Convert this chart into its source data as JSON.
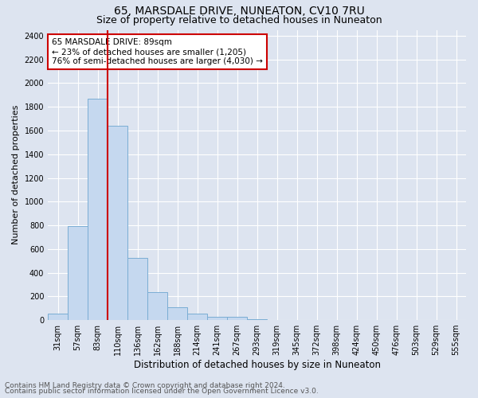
{
  "title1": "65, MARSDALE DRIVE, NUNEATON, CV10 7RU",
  "title2": "Size of property relative to detached houses in Nuneaton",
  "xlabel": "Distribution of detached houses by size in Nuneaton",
  "ylabel": "Number of detached properties",
  "categories": [
    "31sqm",
    "57sqm",
    "83sqm",
    "110sqm",
    "136sqm",
    "162sqm",
    "188sqm",
    "214sqm",
    "241sqm",
    "267sqm",
    "293sqm",
    "319sqm",
    "345sqm",
    "372sqm",
    "398sqm",
    "424sqm",
    "450sqm",
    "476sqm",
    "503sqm",
    "529sqm",
    "555sqm"
  ],
  "values": [
    55,
    795,
    1870,
    1640,
    525,
    235,
    110,
    55,
    30,
    25,
    10,
    0,
    0,
    0,
    0,
    0,
    0,
    0,
    0,
    0,
    0
  ],
  "bar_color": "#c5d8ef",
  "bar_edge_color": "#7aadd4",
  "annotation_text1": "65 MARSDALE DRIVE: 89sqm",
  "annotation_text2": "← 23% of detached houses are smaller (1,205)",
  "annotation_text3": "76% of semi-detached houses are larger (4,030) →",
  "annotation_box_facecolor": "#ffffff",
  "annotation_border_color": "#cc0000",
  "red_line_bar_index": 2,
  "ylim": [
    0,
    2450
  ],
  "yticks": [
    0,
    200,
    400,
    600,
    800,
    1000,
    1200,
    1400,
    1600,
    1800,
    2000,
    2200,
    2400
  ],
  "footer1": "Contains HM Land Registry data © Crown copyright and database right 2024.",
  "footer2": "Contains public sector information licensed under the Open Government Licence v3.0.",
  "bg_color": "#dde4f0",
  "plot_bg_color": "#dde4f0",
  "grid_color": "#ffffff",
  "title1_fontsize": 10,
  "title2_fontsize": 9,
  "xlabel_fontsize": 8.5,
  "ylabel_fontsize": 8,
  "tick_fontsize": 7,
  "footer_fontsize": 6.5,
  "annotation_fontsize": 7.5
}
